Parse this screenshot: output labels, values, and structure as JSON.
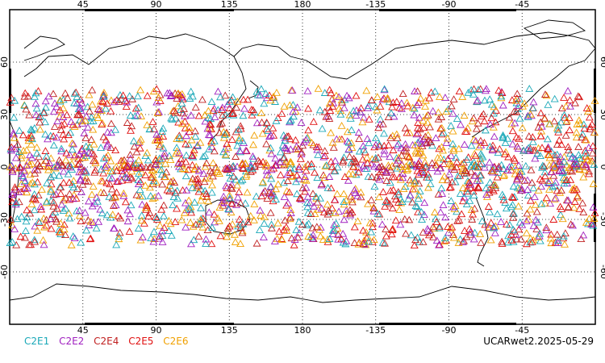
{
  "map": {
    "projection": "cylindrical-equidistant",
    "center_longitude": 180,
    "lon_range": [
      0,
      360
    ],
    "lat_range": [
      -90,
      90
    ],
    "gridlines": true,
    "lon_ticks": [
      "45",
      "90",
      "135",
      "180",
      "-135",
      "-90",
      "-45"
    ],
    "lon_tick_values": [
      45,
      90,
      135,
      180,
      225,
      270,
      315
    ],
    "lat_ticks": [
      "60",
      "30",
      "0",
      "-30",
      "-60"
    ],
    "lat_tick_values": [
      60,
      30,
      0,
      -30,
      -60
    ],
    "marker": "open-triangle",
    "latitude_band_of_points": [
      -45,
      45
    ]
  },
  "legend": {
    "items": [
      {
        "label": "C2E1",
        "color": "#1aa8b8"
      },
      {
        "label": "C2E2",
        "color": "#a020c0"
      },
      {
        "label": "C2E4",
        "color": "#c02020"
      },
      {
        "label": "C2E5",
        "color": "#e01010"
      },
      {
        "label": "C2E6",
        "color": "#f0a000"
      }
    ]
  },
  "caption": "UCARwet2.2025-05-29"
}
